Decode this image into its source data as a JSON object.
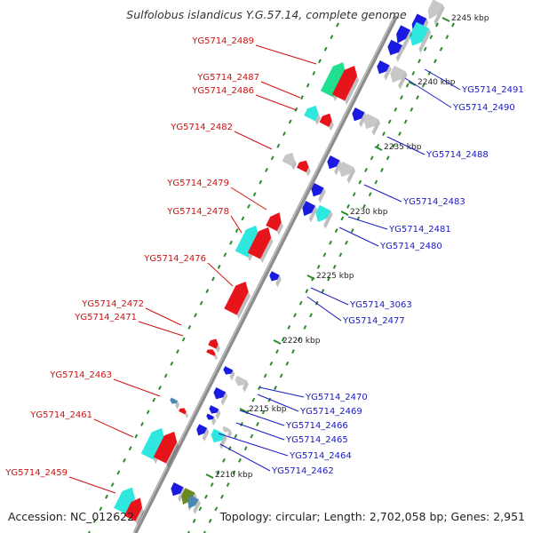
{
  "title": "Sulfolobus islandicus Y.G.57.14, complete genome",
  "accession": "Accession: NC_012622",
  "topology": "Topology: circular; Length: 2,702,058 bp; Genes: 2,951",
  "colors": {
    "backbone": "#8c8c8c",
    "forward_gene": "#e8141c",
    "reverse_gene": "#1a1ae0",
    "rna_gene": "#2ee8e0",
    "pseudo_gene": "#c8c8c8",
    "green_gene": "#20e090",
    "olive_gene": "#6a8a20",
    "blue_grey_gene": "#4a88b0",
    "dot_track": "#2a8a2a",
    "left_label": "#cc1111",
    "right_label": "#1a1ac0",
    "tick_label": "#222222"
  },
  "scale_ticks": [
    {
      "label": "2245 kbp"
    },
    {
      "label": "2240 kbp"
    },
    {
      "label": "2235 kbp"
    },
    {
      "label": "2230 kbp"
    },
    {
      "label": "2225 kbp"
    },
    {
      "label": "2220 kbp"
    },
    {
      "label": "2215 kbp"
    },
    {
      "label": "2210 kbp"
    }
  ],
  "left_labels": [
    "YG5714_2489",
    "YG5714_2487",
    "YG5714_2486",
    "YG5714_2482",
    "YG5714_2479",
    "YG5714_2478",
    "YG5714_2476",
    "YG5714_2472",
    "YG5714_2471",
    "YG5714_2463",
    "YG5714_2461",
    "YG5714_2459"
  ],
  "right_labels": [
    "YG5714_2491",
    "YG5714_2490",
    "YG5714_2488",
    "YG5714_2483",
    "YG5714_2481",
    "YG5714_2480",
    "YG5714_3063",
    "YG5714_2477",
    "YG5714_2470",
    "YG5714_2469",
    "YG5714_2466",
    "YG5714_2465",
    "YG5714_2464",
    "YG5714_2462"
  ]
}
